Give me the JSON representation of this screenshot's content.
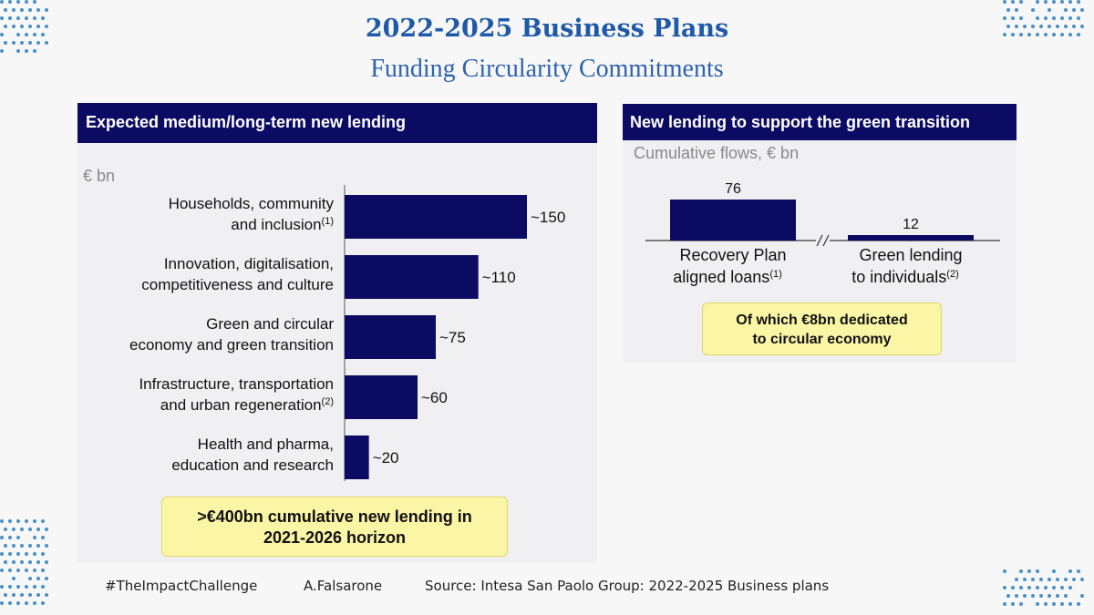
{
  "title": "2022-2025 Business Plans",
  "subtitle": "Funding Circularity Commitments",
  "colors": {
    "bar": "#0b0b63",
    "header_bg": "#0b0b63",
    "callout_bg": "#fbf5a6",
    "title": "#1f5aa8"
  },
  "chart_data": [
    {
      "type": "bar",
      "orientation": "horizontal",
      "title": "Expected medium/long-term new lending",
      "unit_label": "€ bn",
      "categories": [
        [
          "Households, community",
          "and inclusion"
        ],
        [
          "Innovation, digitalisation,",
          "competitiveness and culture"
        ],
        [
          "Green and circular",
          "economy and green transition"
        ],
        [
          "Infrastructure, transportation",
          "and urban regeneration"
        ],
        [
          "Health and pharma,",
          "education and research"
        ]
      ],
      "footnotes": [
        "(1)",
        "",
        "",
        "(2)",
        ""
      ],
      "values": [
        150,
        110,
        75,
        60,
        20
      ],
      "value_labels": [
        "~150",
        "~110",
        "~75",
        "~60",
        "~20"
      ],
      "callout": [
        ">€400bn cumulative new lending in",
        "2021-2026 horizon"
      ]
    },
    {
      "type": "bar",
      "orientation": "vertical",
      "title": "New lending to support the green transition",
      "unit_label": "Cumulative flows, € bn",
      "categories": [
        [
          "Recovery Plan",
          "aligned loans"
        ],
        [
          "Green lending",
          "to individuals"
        ]
      ],
      "footnotes": [
        "(1)",
        "(2)"
      ],
      "values": [
        76,
        12
      ],
      "value_labels": [
        "76",
        "12"
      ],
      "axis_break": true,
      "callout": [
        "Of which €8bn dedicated",
        "to circular economy"
      ]
    }
  ],
  "footer": {
    "hashtag": "#TheImpactChallenge",
    "author": "A.Falsarone",
    "source": "Source: Intesa San Paolo Group: 2022-2025 Business plans"
  }
}
